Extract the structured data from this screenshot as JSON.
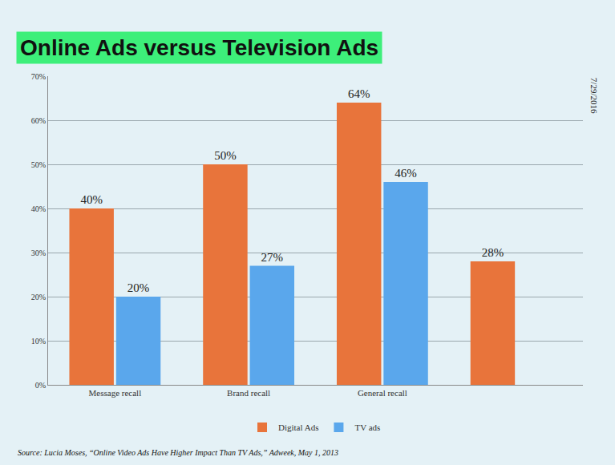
{
  "chart_data": {
    "type": "bar",
    "title": "Online Ads versus Television Ads",
    "categories": [
      "Message recall",
      "Brand recall",
      "General recall",
      null
    ],
    "series": [
      {
        "name": "Digital Ads",
        "color": "#e8743b",
        "values": [
          40,
          50,
          64,
          28
        ],
        "value_labels": [
          "40%",
          "50%",
          "64%",
          "28%"
        ]
      },
      {
        "name": "TV ads",
        "color": "#5aa7ec",
        "values": [
          20,
          27,
          46,
          null
        ],
        "value_labels": [
          "20%",
          "27%",
          "46%",
          null
        ]
      }
    ],
    "ylim": [
      0,
      70
    ],
    "yticks": [
      {
        "value": 0,
        "label": "0%"
      },
      {
        "value": 10,
        "label": "10%"
      },
      {
        "value": 20,
        "label": "20%"
      },
      {
        "value": 30,
        "label": "30%"
      },
      {
        "value": 40,
        "label": "40%"
      },
      {
        "value": 50,
        "label": "50%"
      },
      {
        "value": 60,
        "label": "60%"
      },
      {
        "value": 70,
        "label": "70%"
      }
    ],
    "grid": true,
    "data_labels": true,
    "legend": "bottom",
    "annotations": [
      "Source: Lucia Moses, “Online Video Ads Have Higher Impact Than TV Ads,” Adweek, May 1, 2013",
      "7/29/2016"
    ]
  }
}
